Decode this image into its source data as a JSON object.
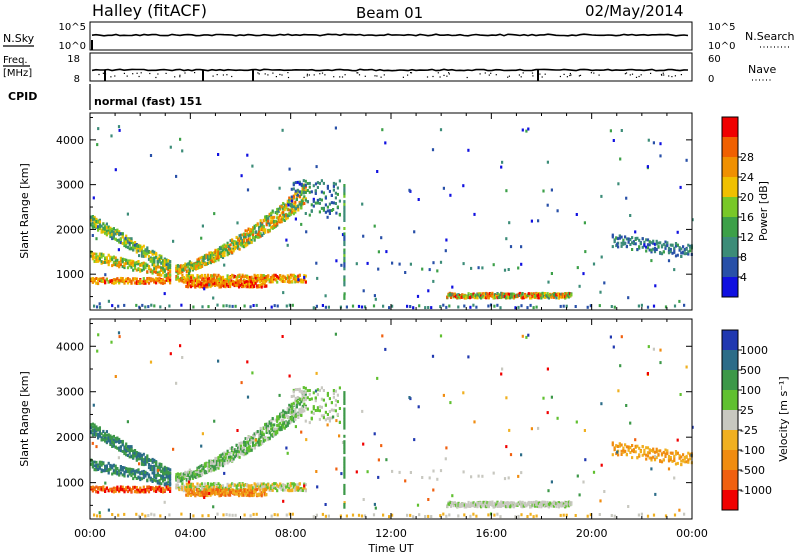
{
  "header": {
    "station": "Halley (fitACF)",
    "beam": "Beam 01",
    "date": "02/May/2014"
  },
  "nsky_panel": {
    "left_label": "N.Sky",
    "left_ticks": [
      "10^5",
      "10^0"
    ],
    "right_label": "N.Search",
    "right_ticks": [
      "10^5",
      "10^0"
    ]
  },
  "freq_panel": {
    "left_label_1": "Freq.",
    "left_label_2": "[MHz]",
    "left_ticks": [
      "18",
      "8"
    ],
    "right_label": "Nave",
    "right_ticks": [
      "60",
      "0"
    ]
  },
  "cpid": {
    "label": "CPID",
    "value": "normal (fast) 151"
  },
  "colors": {
    "power_scale": [
      "#1010e0",
      "#2850a8",
      "#3c8c78",
      "#3ca048",
      "#78c828",
      "#f0c000",
      "#f09000",
      "#f06000",
      "#f00000"
    ],
    "velocity_scale": [
      "#f00000",
      "#f06010",
      "#f08c10",
      "#f0b020",
      "#c8c8c0",
      "#60c030",
      "#3c9848",
      "#2c6c88",
      "#2038b0"
    ]
  },
  "chart_data": [
    {
      "type": "heatmap",
      "panel": "power",
      "ylabel": "Slant Range [km]",
      "xlabel": "Time UT",
      "xticks": [
        "00:00",
        "04:00",
        "08:00",
        "12:00",
        "16:00",
        "20:00",
        "00:00"
      ],
      "yticks": [
        1000,
        2000,
        3000,
        4000
      ],
      "ylim": [
        200,
        4600
      ],
      "xlim_hours": [
        0,
        24
      ],
      "colorbar": {
        "label": "Power [dB]",
        "ticks": [
          4,
          8,
          12,
          16,
          20,
          24,
          28
        ],
        "range": [
          0,
          30
        ]
      }
    },
    {
      "type": "heatmap",
      "panel": "velocity",
      "ylabel": "Slant Range [km]",
      "xlabel": "Time UT",
      "xticks": [
        "00:00",
        "04:00",
        "08:00",
        "12:00",
        "16:00",
        "20:00",
        "00:00"
      ],
      "yticks": [
        1000,
        2000,
        3000,
        4000
      ],
      "ylim": [
        200,
        4600
      ],
      "xlim_hours": [
        0,
        24
      ],
      "colorbar": {
        "label": "Velocity [m s⁻¹]",
        "ticks": [
          "1000",
          "500",
          "100",
          "25",
          "-25",
          "-100",
          "-500",
          "-1000"
        ]
      }
    }
  ]
}
